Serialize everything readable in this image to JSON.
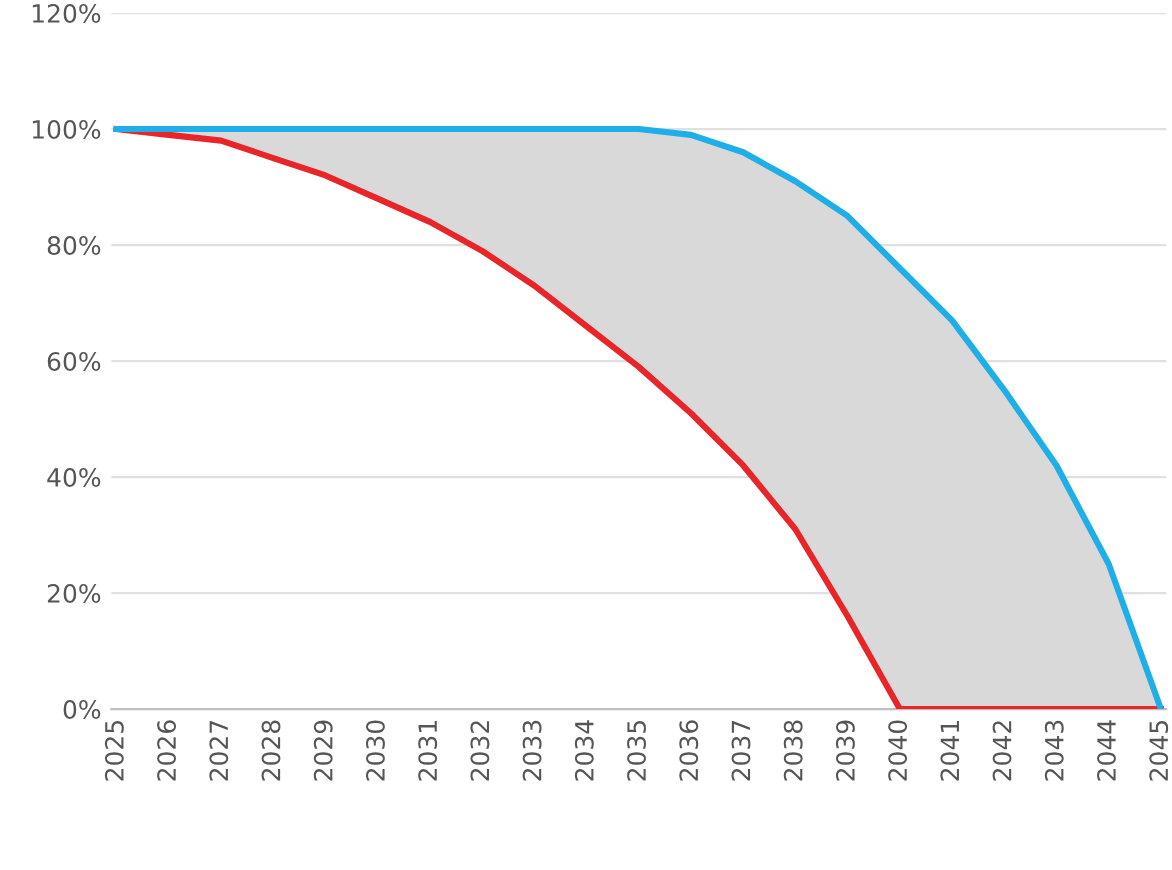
{
  "chart_data": {
    "type": "line",
    "categories": [
      "2025",
      "2026",
      "2027",
      "2028",
      "2029",
      "2030",
      "2031",
      "2032",
      "2033",
      "2034",
      "2035",
      "2036",
      "2037",
      "2038",
      "2039",
      "2040",
      "2041",
      "2042",
      "2043",
      "2044",
      "2045"
    ],
    "series": [
      {
        "color": "#e8262a",
        "values": [
          100,
          99,
          98,
          95,
          92,
          88,
          84,
          79,
          73,
          66,
          59,
          51,
          42,
          31,
          16,
          0,
          0,
          0,
          0,
          0,
          0
        ]
      },
      {
        "color": "#1eaee8",
        "values": [
          100,
          100,
          100,
          100,
          100,
          100,
          100,
          100,
          100,
          100,
          100,
          99,
          96,
          91,
          85,
          76,
          67,
          55,
          42,
          25,
          0
        ],
        "lower": [
          100,
          99,
          98,
          95,
          92,
          88,
          84,
          79,
          73,
          66,
          59,
          51,
          42,
          31,
          16,
          0,
          0,
          0,
          0,
          0,
          0
        ],
        "upper": [
          100,
          100,
          100,
          100,
          100,
          100,
          100,
          100,
          100,
          100,
          100,
          99,
          96,
          91,
          85,
          76,
          67,
          55,
          42,
          25,
          0
        ]
      }
    ],
    "ylim": [
      0,
      120
    ],
    "yticks": [
      {
        "value": 0,
        "label": "0%"
      },
      {
        "value": 20,
        "label": "20%"
      },
      {
        "value": 40,
        "label": "40%"
      },
      {
        "value": 60,
        "label": "60%"
      },
      {
        "value": 80,
        "label": "80%"
      },
      {
        "value": 100,
        "label": "100%"
      },
      {
        "value": 120,
        "label": "120%"
      }
    ],
    "grid": "y",
    "marker": "none",
    "line_style": "solid"
  }
}
